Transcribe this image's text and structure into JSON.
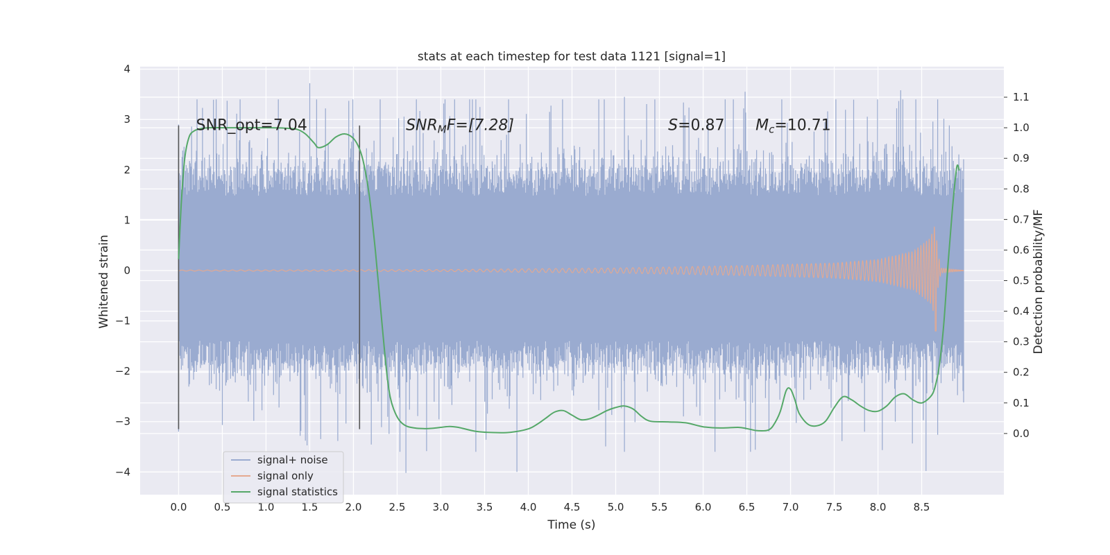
{
  "chart_data": {
    "type": "line",
    "title": "stats at each timestep for test data 1121 [signal=1]",
    "xlabel": "Time (s)",
    "ylabel": "Whitened strain",
    "ylabel_right": "Detection probability/MF",
    "xlim": [
      -0.44,
      9.44
    ],
    "ylim": [
      -4.45,
      4.05
    ],
    "ylim_right": [
      -0.2,
      1.2
    ],
    "x_ticks": [
      "0.0",
      "0.5",
      "1.0",
      "1.5",
      "2.0",
      "2.5",
      "3.0",
      "3.5",
      "4.0",
      "4.5",
      "5.0",
      "5.5",
      "6.0",
      "6.5",
      "7.0",
      "7.5",
      "8.0",
      "8.5"
    ],
    "y_ticks": [
      "−4",
      "−3",
      "−2",
      "−1",
      "0",
      "1",
      "2",
      "3",
      "4"
    ],
    "y_ticks_right": [
      "0.0",
      "0.1",
      "0.2",
      "0.3",
      "0.4",
      "0.5",
      "0.6",
      "0.7",
      "0.8",
      "0.9",
      "1.0",
      "1.1"
    ],
    "grid": true,
    "legend_position": "lower-left",
    "series": [
      {
        "name": "signal+ noise",
        "color": "#9aabd0",
        "axis": "left",
        "description": "whitened noisy strain, about 0 to 8.98 s, core band about ±1.6 with spikes reaching about 3.7 and −4.0",
        "time_range": [
          0.0,
          8.98
        ],
        "core_band": [
          -1.55,
          1.65
        ],
        "peaks": [
          {
            "x": 0.0,
            "y": 2.9
          },
          {
            "x": 0.0,
            "y": -3.2
          },
          {
            "x": 1.5,
            "y": 3.72
          },
          {
            "x": 1.45,
            "y": -3.38
          },
          {
            "x": 2.6,
            "y": -4.02
          },
          {
            "x": 3.87,
            "y": -4.0
          },
          {
            "x": 5.1,
            "y": 3.45
          },
          {
            "x": 5.1,
            "y": -3.6
          },
          {
            "x": 6.48,
            "y": 3.55
          },
          {
            "x": 8.26,
            "y": 3.58
          },
          {
            "x": 8.55,
            "y": -3.98
          },
          {
            "x": 6.9,
            "y": 3.4
          }
        ]
      },
      {
        "name": "signal only",
        "color": "#e5a990",
        "axis": "left",
        "description": "chirp waveform with growing amplitude, merger near 8.66 s",
        "envelope": [
          [
            0,
            0.01
          ],
          [
            3,
            0.02
          ],
          [
            5,
            0.05
          ],
          [
            6.5,
            0.1
          ],
          [
            7.5,
            0.15
          ],
          [
            8.0,
            0.22
          ],
          [
            8.4,
            0.38
          ],
          [
            8.6,
            0.65
          ],
          [
            8.66,
            0.95
          ],
          [
            8.68,
            0.4
          ],
          [
            8.72,
            0.05
          ],
          [
            9.0,
            0.0
          ]
        ],
        "merger_time": 8.66,
        "merger_min": -1.2
      },
      {
        "name": "signal statistics",
        "color": "#55a868",
        "axis": "right",
        "x": [
          0.0,
          0.03,
          0.07,
          0.12,
          0.18,
          0.25,
          0.35,
          0.5,
          0.7,
          1.0,
          1.2,
          1.35,
          1.45,
          1.55,
          1.6,
          1.7,
          1.8,
          1.9,
          2.0,
          2.07,
          2.12,
          2.18,
          2.25,
          2.32,
          2.38,
          2.42,
          2.46,
          2.52,
          2.6,
          2.7,
          2.8,
          2.9,
          3.0,
          3.1,
          3.2,
          3.4,
          3.6,
          3.8,
          4.0,
          4.1,
          4.2,
          4.3,
          4.4,
          4.5,
          4.6,
          4.7,
          4.8,
          4.9,
          5.0,
          5.1,
          5.2,
          5.3,
          5.4,
          5.6,
          5.8,
          6.0,
          6.2,
          6.4,
          6.5,
          6.6,
          6.7,
          6.75,
          6.8,
          6.88,
          6.95,
          7.0,
          7.05,
          7.1,
          7.2,
          7.3,
          7.4,
          7.5,
          7.6,
          7.7,
          7.8,
          7.9,
          8.0,
          8.1,
          8.2,
          8.3,
          8.4,
          8.5,
          8.6,
          8.65,
          8.7,
          8.75,
          8.8,
          8.85,
          8.9,
          8.93
        ],
        "y": [
          0.57,
          0.75,
          0.9,
          0.97,
          0.99,
          0.997,
          1.0,
          1.0,
          1.0,
          1.0,
          0.999,
          0.995,
          0.98,
          0.95,
          0.935,
          0.945,
          0.97,
          0.98,
          0.965,
          0.93,
          0.88,
          0.78,
          0.6,
          0.38,
          0.2,
          0.12,
          0.08,
          0.045,
          0.025,
          0.018,
          0.016,
          0.017,
          0.02,
          0.023,
          0.02,
          0.007,
          0.003,
          0.004,
          0.015,
          0.03,
          0.05,
          0.07,
          0.075,
          0.06,
          0.045,
          0.048,
          0.06,
          0.075,
          0.085,
          0.09,
          0.08,
          0.055,
          0.04,
          0.038,
          0.035,
          0.022,
          0.018,
          0.02,
          0.016,
          0.01,
          0.009,
          0.012,
          0.025,
          0.07,
          0.14,
          0.145,
          0.11,
          0.065,
          0.03,
          0.025,
          0.04,
          0.085,
          0.12,
          0.11,
          0.09,
          0.075,
          0.073,
          0.09,
          0.12,
          0.13,
          0.11,
          0.1,
          0.12,
          0.15,
          0.22,
          0.35,
          0.55,
          0.73,
          0.87,
          0.86
        ]
      }
    ],
    "vertical_markers": [
      {
        "x": 0.0,
        "y_range": [
          -3.15,
          2.88
        ],
        "color": "#555555"
      },
      {
        "x": 2.07,
        "y_range": [
          -3.15,
          2.88
        ],
        "color": "#555555"
      }
    ],
    "annotations": [
      {
        "id": "snr-opt",
        "text": "SNR_opt=7.04",
        "x": 0.2,
        "y": 2.9
      },
      {
        "id": "snr-mf",
        "main": "SNR",
        "sub": "M",
        "tail": "F=[7.28]",
        "x": 2.6,
        "y": 2.9
      },
      {
        "id": "s-stat",
        "main": "S",
        "tail": "=0.87",
        "x": 5.6,
        "y": 2.9
      },
      {
        "id": "mc",
        "main": "M",
        "sub": "c",
        "tail": "=10.71",
        "x": 6.6,
        "y": 2.9
      }
    ]
  }
}
